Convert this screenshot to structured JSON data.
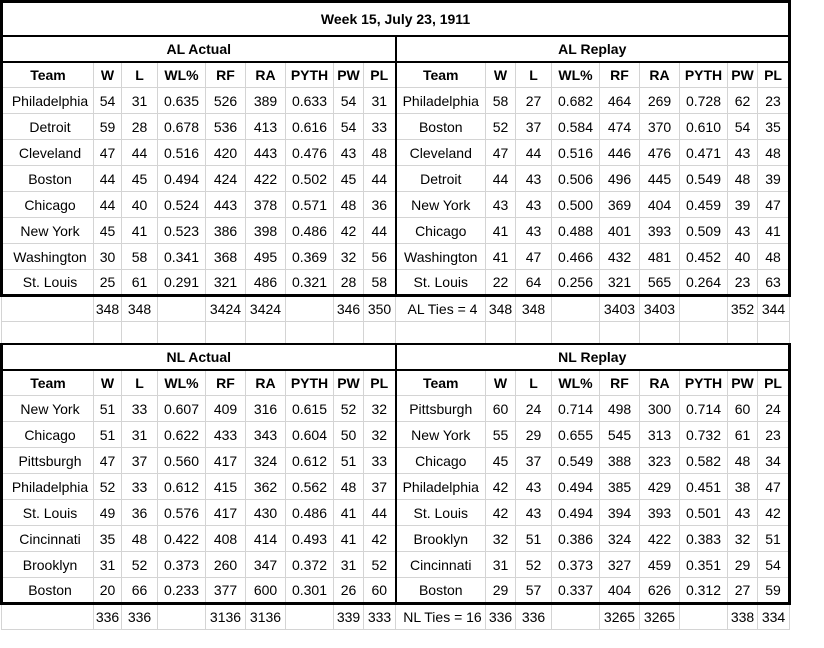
{
  "title": "Week 15, July 23, 1911",
  "columns": [
    "Team",
    "W",
    "L",
    "WL%",
    "RF",
    "RA",
    "PYTH",
    "PW",
    "PL"
  ],
  "sections": {
    "al_actual": {
      "label": "AL Actual",
      "rows": [
        [
          "Philadelphia",
          "54",
          "31",
          "0.635",
          "526",
          "389",
          "0.633",
          "54",
          "31"
        ],
        [
          "Detroit",
          "59",
          "28",
          "0.678",
          "536",
          "413",
          "0.616",
          "54",
          "33"
        ],
        [
          "Cleveland",
          "47",
          "44",
          "0.516",
          "420",
          "443",
          "0.476",
          "43",
          "48"
        ],
        [
          "Boston",
          "44",
          "45",
          "0.494",
          "424",
          "422",
          "0.502",
          "45",
          "44"
        ],
        [
          "Chicago",
          "44",
          "40",
          "0.524",
          "443",
          "378",
          "0.571",
          "48",
          "36"
        ],
        [
          "New York",
          "45",
          "41",
          "0.523",
          "386",
          "398",
          "0.486",
          "42",
          "44"
        ],
        [
          "Washington",
          "30",
          "58",
          "0.341",
          "368",
          "495",
          "0.369",
          "32",
          "56"
        ],
        [
          "St. Louis",
          "25",
          "61",
          "0.291",
          "321",
          "486",
          "0.321",
          "28",
          "58"
        ]
      ],
      "totals": [
        "",
        "348",
        "348",
        "",
        "3424",
        "3424",
        "",
        "346",
        "350"
      ]
    },
    "al_replay": {
      "label": "AL Replay",
      "rows": [
        [
          "Philadelphia",
          "58",
          "27",
          "0.682",
          "464",
          "269",
          "0.728",
          "62",
          "23"
        ],
        [
          "Boston",
          "52",
          "37",
          "0.584",
          "474",
          "370",
          "0.610",
          "54",
          "35"
        ],
        [
          "Cleveland",
          "47",
          "44",
          "0.516",
          "446",
          "476",
          "0.471",
          "43",
          "48"
        ],
        [
          "Detroit",
          "44",
          "43",
          "0.506",
          "496",
          "445",
          "0.549",
          "48",
          "39"
        ],
        [
          "New York",
          "43",
          "43",
          "0.500",
          "369",
          "404",
          "0.459",
          "39",
          "47"
        ],
        [
          "Chicago",
          "41",
          "43",
          "0.488",
          "401",
          "393",
          "0.509",
          "43",
          "41"
        ],
        [
          "Washington",
          "41",
          "47",
          "0.466",
          "432",
          "481",
          "0.452",
          "40",
          "48"
        ],
        [
          "St. Louis",
          "22",
          "64",
          "0.256",
          "321",
          "565",
          "0.264",
          "23",
          "63"
        ]
      ],
      "totals": [
        "AL Ties = 4",
        "348",
        "348",
        "",
        "3403",
        "3403",
        "",
        "352",
        "344"
      ]
    },
    "nl_actual": {
      "label": "NL Actual",
      "rows": [
        [
          "New York",
          "51",
          "33",
          "0.607",
          "409",
          "316",
          "0.615",
          "52",
          "32"
        ],
        [
          "Chicago",
          "51",
          "31",
          "0.622",
          "433",
          "343",
          "0.604",
          "50",
          "32"
        ],
        [
          "Pittsburgh",
          "47",
          "37",
          "0.560",
          "417",
          "324",
          "0.612",
          "51",
          "33"
        ],
        [
          "Philadelphia",
          "52",
          "33",
          "0.612",
          "415",
          "362",
          "0.562",
          "48",
          "37"
        ],
        [
          "St. Louis",
          "49",
          "36",
          "0.576",
          "417",
          "430",
          "0.486",
          "41",
          "44"
        ],
        [
          "Cincinnati",
          "35",
          "48",
          "0.422",
          "408",
          "414",
          "0.493",
          "41",
          "42"
        ],
        [
          "Brooklyn",
          "31",
          "52",
          "0.373",
          "260",
          "347",
          "0.372",
          "31",
          "52"
        ],
        [
          "Boston",
          "20",
          "66",
          "0.233",
          "377",
          "600",
          "0.301",
          "26",
          "60"
        ]
      ],
      "totals": [
        "",
        "336",
        "336",
        "",
        "3136",
        "3136",
        "",
        "339",
        "333"
      ]
    },
    "nl_replay": {
      "label": "NL Replay",
      "rows": [
        [
          "Pittsburgh",
          "60",
          "24",
          "0.714",
          "498",
          "300",
          "0.714",
          "60",
          "24"
        ],
        [
          "New York",
          "55",
          "29",
          "0.655",
          "545",
          "313",
          "0.732",
          "61",
          "23"
        ],
        [
          "Chicago",
          "45",
          "37",
          "0.549",
          "388",
          "323",
          "0.582",
          "48",
          "34"
        ],
        [
          "Philadelphia",
          "42",
          "43",
          "0.494",
          "385",
          "429",
          "0.451",
          "38",
          "47"
        ],
        [
          "St. Louis",
          "42",
          "43",
          "0.494",
          "394",
          "393",
          "0.501",
          "43",
          "42"
        ],
        [
          "Brooklyn",
          "32",
          "51",
          "0.386",
          "324",
          "422",
          "0.383",
          "32",
          "51"
        ],
        [
          "Cincinnati",
          "31",
          "52",
          "0.373",
          "327",
          "459",
          "0.351",
          "29",
          "54"
        ],
        [
          "Boston",
          "29",
          "57",
          "0.337",
          "404",
          "626",
          "0.312",
          "27",
          "59"
        ]
      ],
      "totals": [
        "NL Ties = 16",
        "336",
        "336",
        "",
        "3265",
        "3265",
        "",
        "338",
        "334"
      ]
    }
  }
}
